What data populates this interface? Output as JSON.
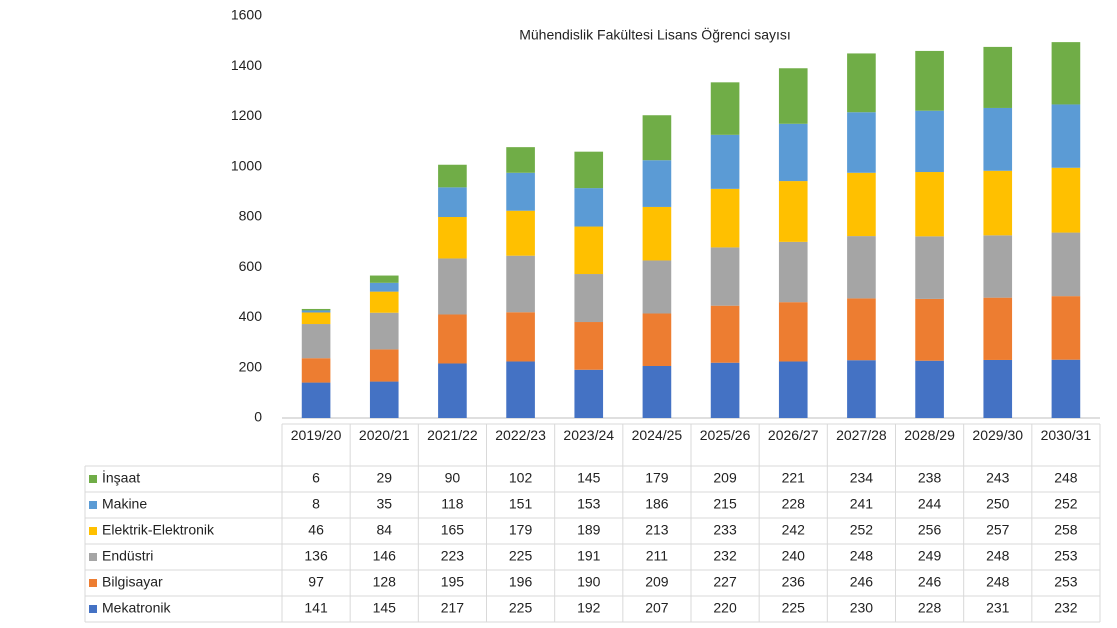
{
  "chart_data": {
    "type": "bar",
    "stacked": true,
    "title": "Mühendislik Fakültesi Lisans Öğrenci sayısı",
    "categories": [
      "2019/20",
      "2020/21",
      "2021/22",
      "2022/23",
      "2023/24",
      "2024/25",
      "2025/26",
      "2026/27",
      "2027/28",
      "2028/29",
      "2029/30",
      "2030/31"
    ],
    "series": [
      {
        "name": "Mekatronik",
        "color": "#4472c4",
        "values": [
          141,
          145,
          217,
          225,
          192,
          207,
          220,
          225,
          230,
          228,
          231,
          232
        ]
      },
      {
        "name": "Bilgisayar",
        "color": "#ed7d31",
        "values": [
          97,
          128,
          195,
          196,
          190,
          209,
          227,
          236,
          246,
          246,
          248,
          253
        ]
      },
      {
        "name": "Endüstri",
        "color": "#a5a5a5",
        "values": [
          136,
          146,
          223,
          225,
          191,
          211,
          232,
          240,
          248,
          249,
          248,
          253
        ]
      },
      {
        "name": "Elektrik-Elektronik",
        "color": "#ffc000",
        "values": [
          46,
          84,
          165,
          179,
          189,
          213,
          233,
          242,
          252,
          256,
          257,
          258
        ]
      },
      {
        "name": "Makine",
        "color": "#5b9bd5",
        "values": [
          8,
          35,
          118,
          151,
          153,
          186,
          215,
          228,
          241,
          244,
          250,
          252
        ]
      },
      {
        "name": "İnşaat",
        "color": "#70ad47",
        "values": [
          6,
          29,
          90,
          102,
          145,
          179,
          209,
          221,
          234,
          238,
          243,
          248
        ]
      }
    ],
    "ylim": [
      0,
      1600
    ],
    "yticks": [
      0,
      200,
      400,
      600,
      800,
      1000,
      1200,
      1400,
      1600
    ],
    "grid": false
  }
}
